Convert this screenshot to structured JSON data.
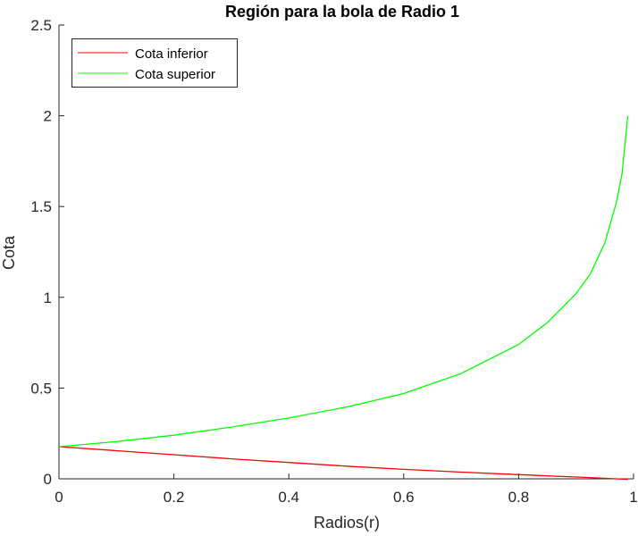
{
  "chart_data": {
    "type": "line",
    "title": "Región para la bola de Radio 1",
    "xlabel": "Radios(r)",
    "ylabel": "Cota",
    "xlim": [
      0,
      1
    ],
    "ylim": [
      0,
      2.5
    ],
    "xticks": [
      "0",
      "0.2",
      "0.4",
      "0.6",
      "0.8",
      "1"
    ],
    "yticks": [
      "0",
      "0.5",
      "1",
      "1.5",
      "2",
      "2.5"
    ],
    "grid": false,
    "legend_position": "upper-left",
    "series": [
      {
        "name": "Cota inferior",
        "color": "#ff0000",
        "x": [
          0,
          0.1,
          0.2,
          0.3,
          0.4,
          0.5,
          0.6,
          0.7,
          0.8,
          0.9,
          0.95,
          0.99
        ],
        "y": [
          0.177,
          0.155,
          0.133,
          0.11,
          0.09,
          0.07,
          0.052,
          0.037,
          0.023,
          0.01,
          0.003,
          -0.003
        ]
      },
      {
        "name": "Cota superior",
        "color": "#00ff00",
        "x": [
          0,
          0.1,
          0.2,
          0.3,
          0.4,
          0.5,
          0.6,
          0.7,
          0.8,
          0.85,
          0.9,
          0.925,
          0.95,
          0.97,
          0.98,
          0.99
        ],
        "y": [
          0.177,
          0.205,
          0.24,
          0.285,
          0.335,
          0.395,
          0.47,
          0.58,
          0.74,
          0.86,
          1.02,
          1.13,
          1.3,
          1.52,
          1.68,
          2.0
        ]
      }
    ]
  },
  "legend": {
    "items": [
      {
        "label": "Cota inferior",
        "color": "#ff0000"
      },
      {
        "label": "Cota superior",
        "color": "#00ff00"
      }
    ]
  }
}
